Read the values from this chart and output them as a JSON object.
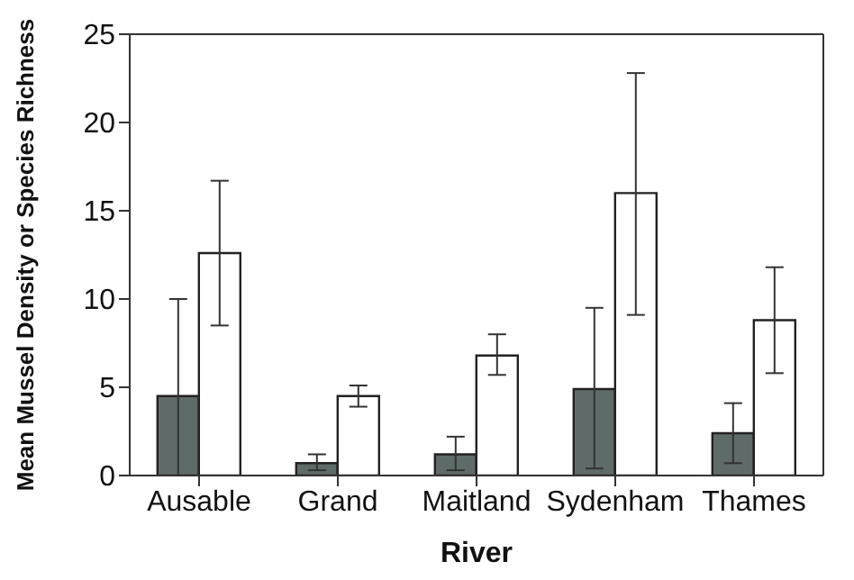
{
  "chart_data": {
    "type": "bar",
    "xlabel": "River",
    "ylabel": "Mean Mussel Density or Species Richness",
    "categories": [
      "Ausable",
      "Grand",
      "Maitland",
      "Sydenham",
      "Thames"
    ],
    "series": [
      {
        "color": "#5f6b68",
        "values": [
          4.5,
          0.7,
          1.2,
          4.9,
          2.4
        ],
        "errors": [
          [
            0,
            10
          ],
          [
            0.3,
            1.2
          ],
          [
            0.3,
            2.2
          ],
          [
            0.4,
            9.5
          ],
          [
            0.7,
            4.1
          ]
        ]
      },
      {
        "color": "#ffffff",
        "values": [
          12.6,
          4.5,
          6.8,
          16.0,
          8.8
        ],
        "errors": [
          [
            8.5,
            16.7
          ],
          [
            3.9,
            5.1
          ],
          [
            5.7,
            8.0
          ],
          [
            9.1,
            22.8
          ],
          [
            5.8,
            11.8
          ]
        ]
      }
    ],
    "ylim": [
      0,
      25
    ],
    "yticks": [
      0,
      5,
      10,
      15,
      20,
      25
    ],
    "grid": false,
    "legend": false
  }
}
